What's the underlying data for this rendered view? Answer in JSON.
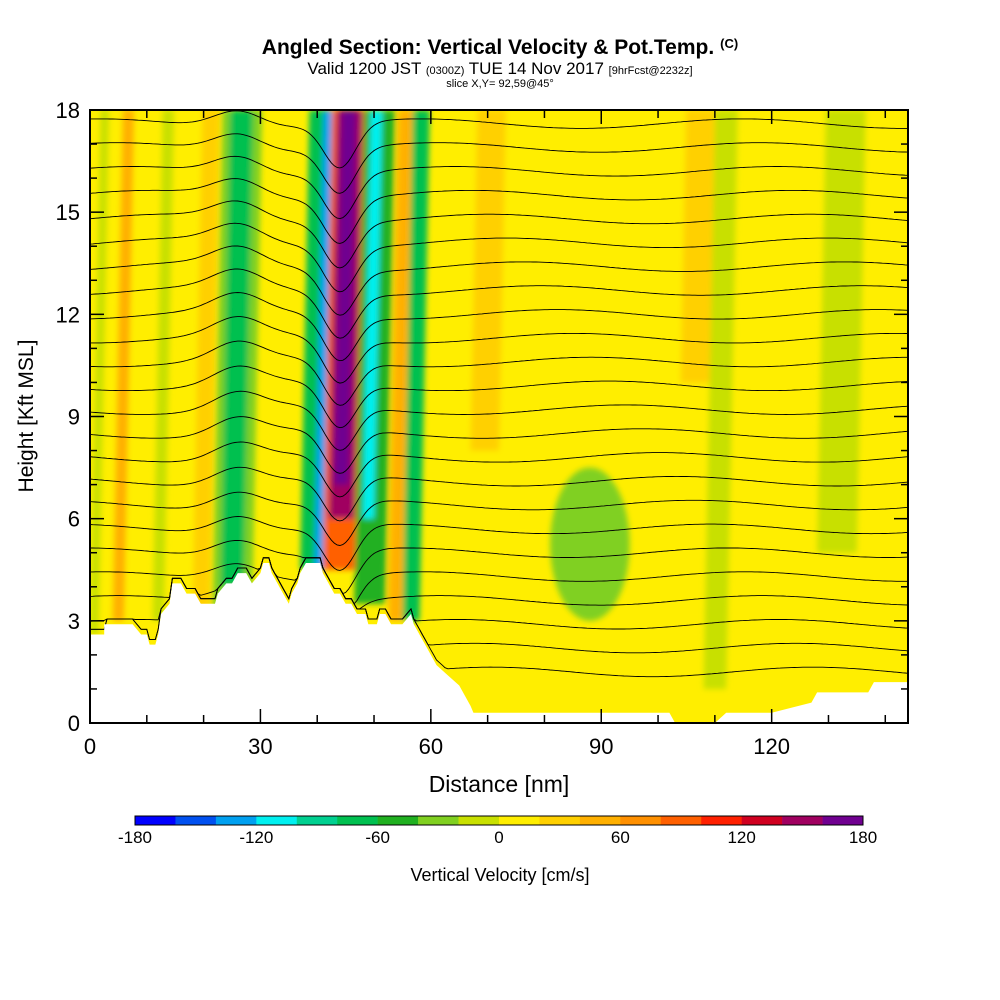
{
  "header": {
    "title": "Angled Section: Vertical Velocity & Pot.Temp.",
    "title_suffix": "(C)",
    "valid_prefix": "Valid 1200 JST",
    "valid_utc": "(0300Z)",
    "valid_date": "TUE 14 Nov 2017",
    "forecast_tag": "[9hrFcst@2232z]",
    "slice": "slice X,Y= 92,59@45°"
  },
  "chart_data": {
    "type": "heatmap",
    "xlabel": "Distance [nm]",
    "ylabel": "Height [Kft MSL]",
    "xlim": [
      0,
      144
    ],
    "ylim": [
      0,
      18
    ],
    "x_ticks": [
      0,
      30,
      60,
      90,
      120
    ],
    "y_ticks": [
      0,
      3,
      6,
      9,
      12,
      15,
      18
    ],
    "x_tick_labels": [
      "0",
      "30",
      "60",
      "90",
      "120"
    ],
    "y_tick_labels": [
      "0",
      "3",
      "6",
      "9",
      "12",
      "15",
      "18"
    ],
    "colorbar": {
      "label": "Vertical Velocity [cm/s]",
      "range": [
        -180,
        180
      ],
      "tick_values": [
        -180,
        -120,
        -60,
        0,
        60,
        120,
        180
      ],
      "tick_labels": [
        "-180",
        "-120",
        "-60",
        "0",
        "60",
        "120",
        "180"
      ],
      "colors": [
        "#0000ff",
        "#0050f0",
        "#00a0f0",
        "#00f0f0",
        "#00d090",
        "#00c050",
        "#20b020",
        "#80d020",
        "#c8e000",
        "#ffee00",
        "#ffd000",
        "#ffb000",
        "#ff9000",
        "#ff6000",
        "#ff2000",
        "#d00020",
        "#a00060",
        "#700090"
      ]
    },
    "terrain_kft": [
      [
        0,
        2.6
      ],
      [
        2.5,
        2.6
      ],
      [
        2.5,
        2.9
      ],
      [
        7.5,
        2.9
      ],
      [
        9,
        2.6
      ],
      [
        10,
        2.6
      ],
      [
        10.5,
        2.3
      ],
      [
        11.5,
        2.3
      ],
      [
        12,
        2.6
      ],
      [
        12.5,
        3.2
      ],
      [
        14,
        3.5
      ],
      [
        14.5,
        4.1
      ],
      [
        16,
        4.1
      ],
      [
        17,
        3.8
      ],
      [
        18.5,
        3.8
      ],
      [
        19.5,
        3.5
      ],
      [
        22,
        3.5
      ],
      [
        22.5,
        3.8
      ],
      [
        24,
        4.1
      ],
      [
        25,
        4.1
      ],
      [
        26,
        4.4
      ],
      [
        27.5,
        4.4
      ],
      [
        28.5,
        4.1
      ],
      [
        30,
        4.4
      ],
      [
        30.5,
        4.7
      ],
      [
        31.5,
        4.7
      ],
      [
        32,
        4.4
      ],
      [
        33,
        4.1
      ],
      [
        34,
        3.8
      ],
      [
        35,
        3.5
      ],
      [
        35.5,
        3.8
      ],
      [
        36.5,
        4.1
      ],
      [
        37,
        4.4
      ],
      [
        38,
        4.7
      ],
      [
        40.5,
        4.7
      ],
      [
        41,
        4.4
      ],
      [
        42,
        4.1
      ],
      [
        43,
        3.8
      ],
      [
        44,
        3.8
      ],
      [
        45,
        3.5
      ],
      [
        46,
        3.5
      ],
      [
        47,
        3.2
      ],
      [
        48.5,
        3.2
      ],
      [
        49,
        2.9
      ],
      [
        50.5,
        2.9
      ],
      [
        51,
        3.2
      ],
      [
        52,
        3.2
      ],
      [
        53,
        2.9
      ],
      [
        55,
        2.9
      ],
      [
        56.5,
        3.2
      ],
      [
        57,
        2.9
      ],
      [
        58,
        2.6
      ],
      [
        59,
        2.3
      ],
      [
        60,
        2.0
      ],
      [
        61,
        1.7
      ],
      [
        63,
        1.4
      ],
      [
        65,
        1.1
      ],
      [
        66,
        0.8
      ],
      [
        67,
        0.5
      ],
      [
        67.5,
        0.3
      ],
      [
        102,
        0.3
      ],
      [
        103,
        0.0
      ],
      [
        110,
        0.0
      ],
      [
        112,
        0.3
      ],
      [
        120,
        0.3
      ],
      [
        127,
        0.6
      ],
      [
        128,
        0.9
      ],
      [
        137,
        0.9
      ],
      [
        138,
        1.2
      ],
      [
        144,
        1.2
      ]
    ],
    "vertical_velocity_bands": [
      {
        "x0": 0,
        "x1": 1.5,
        "z0": 2.6,
        "value": -10
      },
      {
        "x0": 4,
        "x1": 6,
        "z0": 3,
        "value": 40
      },
      {
        "x0": 6.5,
        "x1": 8,
        "z0": 3,
        "value": 15
      },
      {
        "x0": 11,
        "x1": 13,
        "z0": 3,
        "value": -20
      },
      {
        "x0": 18,
        "x1": 21,
        "z0": 3,
        "value": 25
      },
      {
        "x0": 21.5,
        "x1": 28.5,
        "z0": 3,
        "value": -35
      },
      {
        "x0": 23,
        "x1": 27,
        "z0": 4,
        "value": -65
      },
      {
        "x0": 37,
        "x1": 41.5,
        "z0": 4.5,
        "value": -70
      },
      {
        "x0": 39.5,
        "x1": 41.5,
        "z0": 4.5,
        "value": -130
      },
      {
        "x0": 41,
        "x1": 48,
        "z0": 4.5,
        "value": 80
      },
      {
        "x0": 42,
        "x1": 46.5,
        "z0": 6,
        "value": 140
      },
      {
        "x0": 43,
        "x1": 45.5,
        "z0": 7,
        "value": 175
      },
      {
        "x0": 46.5,
        "x1": 52,
        "z0": 3.5,
        "value": -60
      },
      {
        "x0": 48,
        "x1": 50,
        "z0": 6,
        "value": -110
      },
      {
        "x0": 52.5,
        "x1": 55,
        "z0": 3,
        "value": 55
      },
      {
        "x0": 55,
        "x1": 58,
        "z0": 3,
        "value": -65
      },
      {
        "x0": 67,
        "x1": 72,
        "z0": 8,
        "value": 25
      },
      {
        "x0": 93,
        "x1": 99,
        "z0": 10,
        "value": 15
      },
      {
        "x0": 104,
        "x1": 110,
        "z0": 10,
        "value": 20
      },
      {
        "x0": 108,
        "x1": 112,
        "z0": 1,
        "value": -10
      },
      {
        "x0": 128,
        "x1": 135,
        "z0": 5,
        "value": -15
      }
    ],
    "vertical_velocity_region": {
      "x0": 81,
      "x1": 95,
      "z0": 3,
      "z1": 7.5,
      "value": -30
    },
    "isentropes_kft": [
      1.5,
      2.2,
      2.9,
      3.6,
      4.3,
      5.0,
      5.7,
      6.4,
      7.1,
      7.8,
      8.5,
      9.2,
      9.9,
      10.6,
      11.3,
      12.0,
      12.7,
      13.4,
      14.1,
      14.8,
      15.5,
      16.2,
      16.9,
      17.6
    ]
  }
}
